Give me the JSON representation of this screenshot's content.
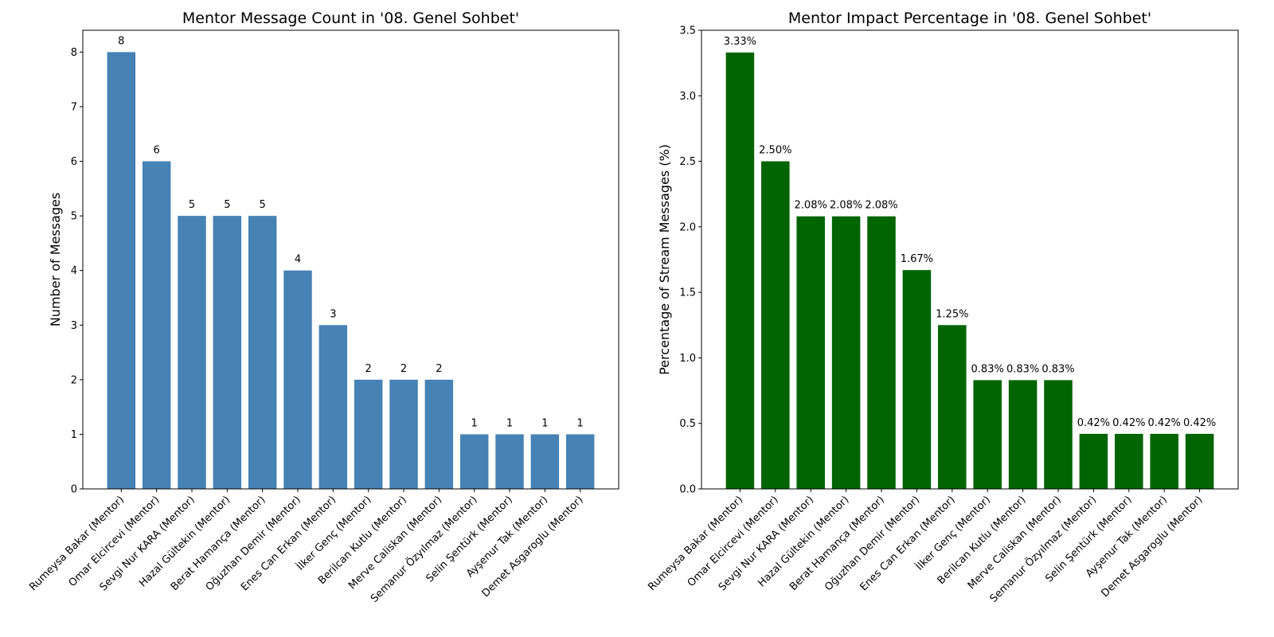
{
  "chart_data": [
    {
      "type": "bar",
      "title": "Mentor Message Count in '08. Genel Sohbet'",
      "xlabel": "",
      "ylabel": "Number of Messages",
      "categories": [
        "Rumeysa Bakar (Mentor)",
        "Omar Elcircevi (Mentor)",
        "Sevgi Nur KARA (Mentor)",
        "Hazal Gültekin (Mentor)",
        "Berat Hamança (Mentor)",
        "Oğuzhan Demir (Mentor)",
        "Enes Can Erkan (Mentor)",
        "İlker Genç (Mentor)",
        "Berilcan Kutlu (Mentor)",
        "Merve Caliskan (Mentor)",
        "Semanur Özyılmaz (Mentor)",
        "Selin Şentürk (Mentor)",
        "Ayşenur Tak (Mentor)",
        "Demet Asgaroglu (Mentor)"
      ],
      "values": [
        8,
        6,
        5,
        5,
        5,
        4,
        3,
        2,
        2,
        2,
        1,
        1,
        1,
        1
      ],
      "value_labels": [
        "8",
        "6",
        "5",
        "5",
        "5",
        "4",
        "3",
        "2",
        "2",
        "2",
        "1",
        "1",
        "1",
        "1"
      ],
      "ylim": [
        0,
        8.4
      ],
      "yticks": [
        0,
        1,
        2,
        3,
        4,
        5,
        6,
        7,
        8
      ],
      "ytick_labels": [
        "0",
        "1",
        "2",
        "3",
        "4",
        "5",
        "6",
        "7",
        "8"
      ],
      "bar_color": "#4682b4",
      "grid": false
    },
    {
      "type": "bar",
      "title": "Mentor Impact Percentage in '08. Genel Sohbet'",
      "xlabel": "",
      "ylabel": "Percentage of Stream Messages (%)",
      "categories": [
        "Rumeysa Bakar (Mentor)",
        "Omar Elcircevi (Mentor)",
        "Sevgi Nur KARA (Mentor)",
        "Hazal Gültekin (Mentor)",
        "Berat Hamança (Mentor)",
        "Oğuzhan Demir (Mentor)",
        "Enes Can Erkan (Mentor)",
        "İlker Genç (Mentor)",
        "Berilcan Kutlu (Mentor)",
        "Merve Caliskan (Mentor)",
        "Semanur Özyılmaz (Mentor)",
        "Selin Şentürk (Mentor)",
        "Ayşenur Tak (Mentor)",
        "Demet Asgaroglu (Mentor)"
      ],
      "values": [
        3.33,
        2.5,
        2.08,
        2.08,
        2.08,
        1.67,
        1.25,
        0.83,
        0.83,
        0.83,
        0.42,
        0.42,
        0.42,
        0.42
      ],
      "value_labels": [
        "3.33%",
        "2.50%",
        "2.08%",
        "2.08%",
        "2.08%",
        "1.67%",
        "1.25%",
        "0.83%",
        "0.83%",
        "0.83%",
        "0.42%",
        "0.42%",
        "0.42%",
        "0.42%"
      ],
      "ylim": [
        0,
        3.5
      ],
      "yticks": [
        0,
        0.5,
        1.0,
        1.5,
        2.0,
        2.5,
        3.0,
        3.5
      ],
      "ytick_labels": [
        "0.0",
        "0.5",
        "1.0",
        "1.5",
        "2.0",
        "2.5",
        "3.0",
        "3.5"
      ],
      "bar_color": "#006400",
      "grid": false
    }
  ]
}
